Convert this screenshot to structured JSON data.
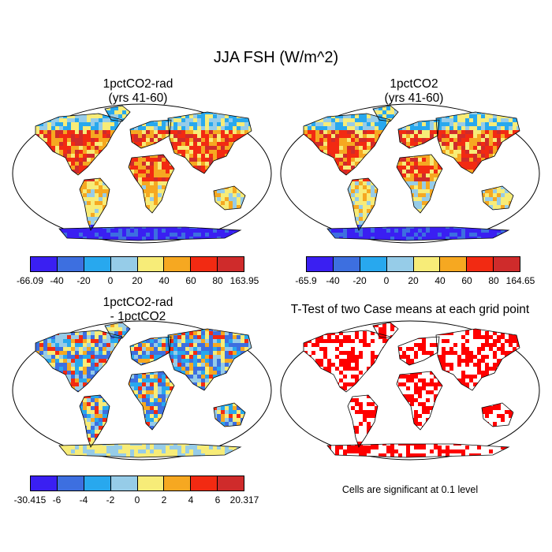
{
  "figure": {
    "title": "JJA FSH (W/m^2)",
    "panels": [
      {
        "id": "tl",
        "title_line1": "1pctCO2-rad",
        "title_line2": "(yrs 41-60)"
      },
      {
        "id": "tr",
        "title_line1": "1pctCO2",
        "title_line2": "(yrs 41-60)"
      },
      {
        "id": "bl",
        "title_line1": "1pctCO2-rad",
        "title_line2": "- 1pctCO2"
      },
      {
        "id": "br",
        "title_line1": "T-Test of two Case means at each grid point",
        "title_line2": ""
      }
    ],
    "colorbars": {
      "top_left": {
        "labels": [
          "-66.09",
          "-40",
          "-20",
          "0",
          "20",
          "40",
          "60",
          "80",
          "163.95"
        ]
      },
      "top_right": {
        "labels": [
          "-65.9",
          "-40",
          "-20",
          "0",
          "20",
          "40",
          "60",
          "80",
          "164.65"
        ]
      },
      "bottom_left": {
        "labels": [
          "-30.415",
          "-6",
          "-4",
          "-2",
          "0",
          "2",
          "4",
          "6",
          "20.317"
        ]
      }
    },
    "colors": [
      "#3a1ff2",
      "#3d6fe0",
      "#28a8ee",
      "#96cce8",
      "#f7ec78",
      "#f6a821",
      "#f22a12",
      "#cf2b2b"
    ],
    "significance_color": "#ff0000",
    "significance_note": "Cells are significant at 0.1 level"
  }
}
